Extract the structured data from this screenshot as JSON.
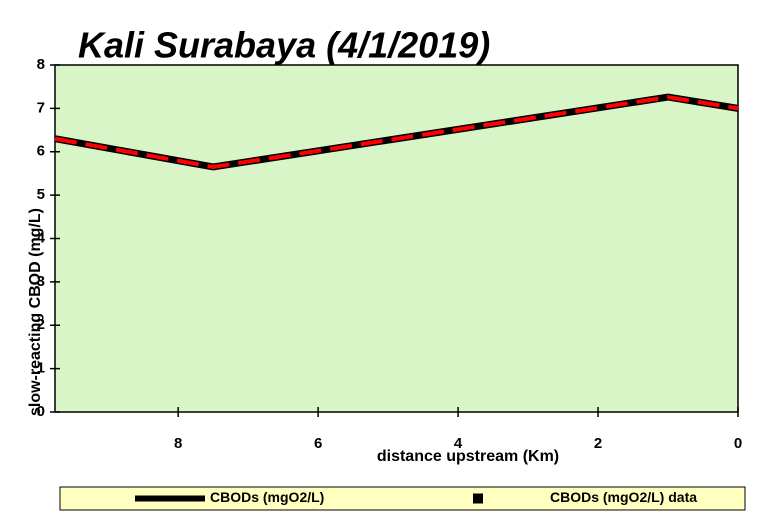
{
  "chart_data": {
    "type": "line",
    "title": "Kali Surabaya (4/1/2019)",
    "x_label": "distance upstream (Km)",
    "y_label": "slow-reacting CBOD (mg/L)",
    "xlim": [
      9.76,
      0
    ],
    "xticks": [
      8,
      6,
      4,
      2,
      0
    ],
    "ylim": [
      0,
      8
    ],
    "yticks": [
      0,
      1,
      2,
      3,
      4,
      5,
      6,
      7,
      8
    ],
    "series": [
      {
        "name": "CBODs (mgO2/L)",
        "color": "#000000",
        "dash_color": "#ff0000",
        "x": [
          9.76,
          7.5,
          1.0,
          0
        ],
        "values": [
          6.3,
          5.65,
          7.26,
          7.0
        ]
      },
      {
        "name": "CBODs (mgO2/L) data",
        "color": "#000000",
        "marker": "square"
      }
    ]
  }
}
